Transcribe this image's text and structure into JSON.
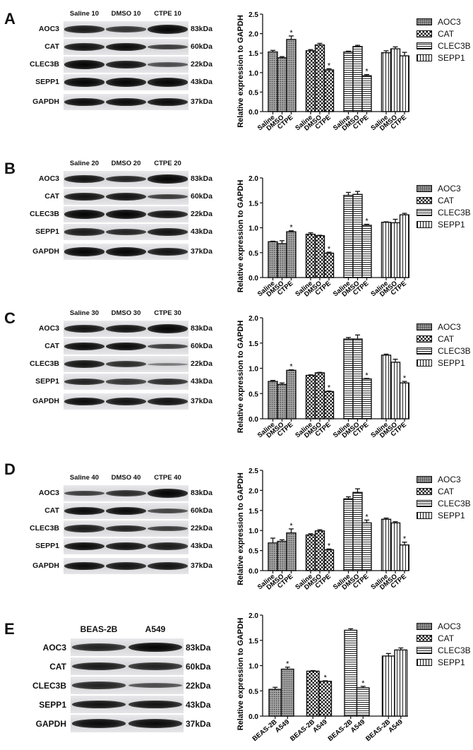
{
  "figure": {
    "panels": [
      {
        "letter": "A",
        "blot": {
          "lanes": [
            "Saline 10",
            "DMSO 10",
            "CTPE 10"
          ],
          "rows": [
            {
              "label": "AOC3",
              "kda": "83kDa"
            },
            {
              "label": "CAT",
              "kda": "60kDa"
            },
            {
              "label": "CLEC3B",
              "kda": "22kDa"
            },
            {
              "label": "SEPP1",
              "kda": "43kDa"
            },
            {
              "label": "GAPDH",
              "kda": "37kDa"
            }
          ]
        }
      },
      {
        "letter": "B",
        "blot": {
          "lanes": [
            "Saline 20",
            "DMSO 20",
            "CTPE 20"
          ],
          "rows": [
            {
              "label": "AOC3",
              "kda": "83kDa"
            },
            {
              "label": "CAT",
              "kda": "60kDa"
            },
            {
              "label": "CLEC3B",
              "kda": "22kDa"
            },
            {
              "label": "SEPP1",
              "kda": "43kDa"
            },
            {
              "label": "GAPDH",
              "kda": "37kDa"
            }
          ]
        }
      },
      {
        "letter": "C",
        "blot": {
          "lanes": [
            "Saline 30",
            "DMSO 30",
            "CTPE 30"
          ],
          "rows": [
            {
              "label": "AOC3",
              "kda": "83kDa"
            },
            {
              "label": "CAT",
              "kda": "60kDa"
            },
            {
              "label": "CLEC3B",
              "kda": "22kDa"
            },
            {
              "label": "SEPP1",
              "kda": "43kDa"
            },
            {
              "label": "GAPDH",
              "kda": "37kDa"
            }
          ]
        }
      },
      {
        "letter": "D",
        "blot": {
          "lanes": [
            "Saline 40",
            "DMSO 40",
            "CTPE 40"
          ],
          "rows": [
            {
              "label": "AOC3",
              "kda": "83kDa"
            },
            {
              "label": "CAT",
              "kda": "60kDa"
            },
            {
              "label": "CLEC3B",
              "kda": "22kDa"
            },
            {
              "label": "SEPP1",
              "kda": "43kDa"
            },
            {
              "label": "GAPDH",
              "kda": "37kDa"
            }
          ]
        }
      },
      {
        "letter": "E",
        "blot": {
          "lanes": [
            "BEAS-2B",
            "A549"
          ],
          "rows": [
            {
              "label": "AOC3",
              "kda": "83kDa"
            },
            {
              "label": "CAT",
              "kda": "60kDa"
            },
            {
              "label": "CLEC3B",
              "kda": "22kDa"
            },
            {
              "label": "SEPP1",
              "kda": "43kDa"
            },
            {
              "label": "GAPDH",
              "kda": "37kDa"
            }
          ]
        }
      }
    ]
  },
  "chart_data": [
    {
      "panel": "A",
      "type": "bar",
      "title": "",
      "xlabel": "",
      "ylabel": "Relative expression to GAPDH",
      "ylim": [
        0,
        2.5
      ],
      "yticks": [
        "0.0",
        "0.5",
        "1.0",
        "1.5",
        "2.0",
        "2.5"
      ],
      "grid": false,
      "legend_position": "right",
      "legend": [
        "AOC3",
        "CAT",
        "CLEC3B",
        "SEPP1"
      ],
      "groups": [
        "AOC3",
        "CAT",
        "CLEC3B",
        "SEPP1"
      ],
      "categories": [
        "Saline",
        "DMSO",
        "CTPE"
      ],
      "series": [
        {
          "name": "AOC3",
          "values": [
            1.53,
            1.38,
            1.85
          ],
          "errors": [
            0.04,
            0.03,
            0.09
          ],
          "significant": [
            false,
            false,
            true
          ]
        },
        {
          "name": "CAT",
          "values": [
            1.56,
            1.71,
            1.07
          ],
          "errors": [
            0.03,
            0.04,
            0.03
          ],
          "significant": [
            false,
            false,
            true
          ]
        },
        {
          "name": "CLEC3B",
          "values": [
            1.53,
            1.67,
            0.92
          ],
          "errors": [
            0.02,
            0.03,
            0.03
          ],
          "significant": [
            false,
            false,
            true
          ]
        },
        {
          "name": "SEPP1",
          "values": [
            1.51,
            1.61,
            1.43
          ],
          "errors": [
            0.05,
            0.05,
            0.09
          ],
          "significant": [
            false,
            false,
            false
          ]
        }
      ],
      "annotations": [
        "*"
      ]
    },
    {
      "panel": "B",
      "type": "bar",
      "title": "",
      "xlabel": "",
      "ylabel": "Relative expression to GAPDH",
      "ylim": [
        0,
        2.0
      ],
      "yticks": [
        "0.0",
        "0.5",
        "1.0",
        "1.5",
        "2.0"
      ],
      "grid": false,
      "legend_position": "right",
      "legend": [
        "AOC3",
        "CAT",
        "CLEC3B",
        "SEPP1"
      ],
      "groups": [
        "AOC3",
        "CAT",
        "CLEC3B",
        "SEPP1"
      ],
      "categories": [
        "Saline",
        "DMSO",
        "CTPE"
      ],
      "series": [
        {
          "name": "AOC3",
          "values": [
            0.72,
            0.68,
            0.92
          ],
          "errors": [
            0.01,
            0.06,
            0.02
          ],
          "significant": [
            false,
            false,
            true
          ]
        },
        {
          "name": "CAT",
          "values": [
            0.87,
            0.84,
            0.49
          ],
          "errors": [
            0.03,
            0.01,
            0.02
          ],
          "significant": [
            false,
            false,
            true
          ]
        },
        {
          "name": "CLEC3B",
          "values": [
            1.65,
            1.67,
            1.05
          ],
          "errors": [
            0.06,
            0.06,
            0.02
          ],
          "significant": [
            false,
            false,
            true
          ]
        },
        {
          "name": "SEPP1",
          "values": [
            1.11,
            1.1,
            1.26
          ],
          "errors": [
            0.01,
            0.07,
            0.03
          ],
          "significant": [
            false,
            false,
            false
          ]
        }
      ],
      "annotations": [
        "*"
      ]
    },
    {
      "panel": "C",
      "type": "bar",
      "title": "",
      "xlabel": "",
      "ylabel": "Relative expression to GAPDH",
      "ylim": [
        0,
        2.0
      ],
      "yticks": [
        "0.0",
        "0.5",
        "1.0",
        "1.5",
        "2.0"
      ],
      "grid": false,
      "legend_position": "right",
      "legend": [
        "AOC3",
        "CAT",
        "CLEC3B",
        "SEPP1"
      ],
      "groups": [
        "AOC3",
        "CAT",
        "CLEC3B",
        "SEPP1"
      ],
      "categories": [
        "Saline",
        "DMSO",
        "CTPE"
      ],
      "series": [
        {
          "name": "AOC3",
          "values": [
            0.74,
            0.68,
            0.96
          ],
          "errors": [
            0.02,
            0.03,
            0.01
          ],
          "significant": [
            false,
            false,
            true
          ]
        },
        {
          "name": "CAT",
          "values": [
            0.86,
            0.91,
            0.54
          ],
          "errors": [
            0.01,
            0.01,
            0.01
          ],
          "significant": [
            false,
            false,
            true
          ]
        },
        {
          "name": "CLEC3B",
          "values": [
            1.58,
            1.58,
            0.79
          ],
          "errors": [
            0.03,
            0.08,
            0.01
          ],
          "significant": [
            false,
            false,
            true
          ]
        },
        {
          "name": "SEPP1",
          "values": [
            1.26,
            1.12,
            0.71
          ],
          "errors": [
            0.02,
            0.06,
            0.03
          ],
          "significant": [
            false,
            false,
            true
          ]
        }
      ],
      "annotations": [
        "*"
      ]
    },
    {
      "panel": "D",
      "type": "bar",
      "title": "",
      "xlabel": "",
      "ylabel": "Relative expression to GAPDH",
      "ylim": [
        0,
        2.5
      ],
      "yticks": [
        "0.0",
        "0.5",
        "1.0",
        "1.5",
        "2.0",
        "2.5"
      ],
      "grid": false,
      "legend_position": "right",
      "legend": [
        "AOC3",
        "CAT",
        "CLEC3B",
        "SEPP1"
      ],
      "groups": [
        "AOC3",
        "CAT",
        "CLEC3B",
        "SEPP1"
      ],
      "categories": [
        "Saline",
        "DMSO",
        "CTPE"
      ],
      "series": [
        {
          "name": "AOC3",
          "values": [
            0.69,
            0.73,
            0.94
          ],
          "errors": [
            0.12,
            0.04,
            0.1
          ],
          "significant": [
            false,
            false,
            true
          ]
        },
        {
          "name": "CAT",
          "values": [
            0.89,
            0.99,
            0.52
          ],
          "errors": [
            0.03,
            0.03,
            0.02
          ],
          "significant": [
            false,
            false,
            true
          ]
        },
        {
          "name": "CLEC3B",
          "values": [
            1.79,
            1.95,
            1.19
          ],
          "errors": [
            0.05,
            0.09,
            0.07
          ],
          "significant": [
            false,
            false,
            true
          ]
        },
        {
          "name": "SEPP1",
          "values": [
            1.28,
            1.19,
            0.64
          ],
          "errors": [
            0.03,
            0.03,
            0.07
          ],
          "significant": [
            false,
            false,
            true
          ]
        }
      ],
      "annotations": [
        "*"
      ]
    },
    {
      "panel": "E",
      "type": "bar",
      "title": "",
      "xlabel": "",
      "ylabel": "Relative expression to GAPDH",
      "ylim": [
        0,
        2.0
      ],
      "yticks": [
        "0.0",
        "0.5",
        "1.0",
        "1.5",
        "2.0"
      ],
      "grid": false,
      "legend_position": "right",
      "legend": [
        "AOC3",
        "CAT",
        "CLEC3B",
        "SEPP1"
      ],
      "groups": [
        "AOC3",
        "CAT",
        "CLEC3B",
        "SEPP1"
      ],
      "categories": [
        "BEAS-2B",
        "A549"
      ],
      "series": [
        {
          "name": "AOC3",
          "values": [
            0.53,
            0.93
          ],
          "errors": [
            0.04,
            0.04
          ],
          "significant": [
            false,
            true
          ]
        },
        {
          "name": "CAT",
          "values": [
            0.89,
            0.69
          ],
          "errors": [
            0.01,
            0.01
          ],
          "significant": [
            false,
            true
          ]
        },
        {
          "name": "CLEC3B",
          "values": [
            1.7,
            0.56
          ],
          "errors": [
            0.03,
            0.03
          ],
          "significant": [
            false,
            true
          ]
        },
        {
          "name": "SEPP1",
          "values": [
            1.19,
            1.31
          ],
          "errors": [
            0.05,
            0.04
          ],
          "significant": [
            false,
            false
          ]
        }
      ],
      "annotations": [
        "*"
      ]
    }
  ]
}
